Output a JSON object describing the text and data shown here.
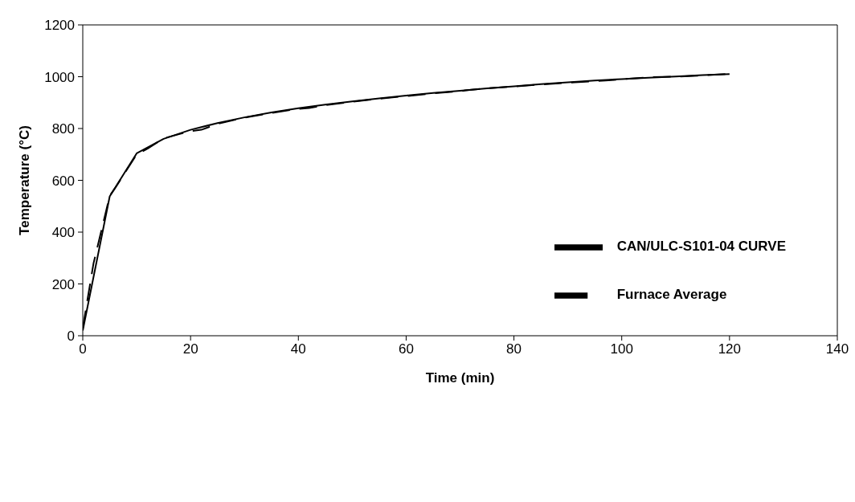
{
  "chart_data": {
    "type": "line",
    "xlabel": "Time (min)",
    "ylabel": "Temperature (°C)",
    "xlim": [
      0,
      140
    ],
    "xticks": [
      0,
      20,
      40,
      60,
      80,
      100,
      120,
      140
    ],
    "ylim": [
      0,
      1200
    ],
    "yticks": [
      0,
      200,
      400,
      600,
      800,
      1000,
      1200
    ],
    "legend": "right",
    "marker": "none",
    "series": [
      {
        "name": "CAN/ULC-S101-04 CURVE",
        "color": "#000000",
        "line_style": "solid",
        "x": [
          0,
          5,
          10,
          15,
          20,
          25,
          30,
          35,
          40,
          45,
          50,
          55,
          60,
          65,
          70,
          75,
          80,
          85,
          90,
          95,
          100,
          105,
          110,
          115,
          120
        ],
        "values": [
          20,
          538,
          704,
          760,
          795,
          821,
          843,
          862,
          878,
          892,
          905,
          916,
          927,
          937,
          946,
          955,
          963,
          971,
          978,
          985,
          991,
          996,
          1001,
          1006,
          1010
        ]
      },
      {
        "name": "Furnace Average",
        "color": "#000000",
        "line_style": "dashed",
        "x": [
          0,
          2,
          5,
          6,
          10,
          12,
          15,
          20,
          22,
          25,
          30,
          35,
          40,
          42,
          45,
          50,
          55,
          60,
          65,
          70,
          71,
          75,
          80,
          85,
          90,
          95,
          97,
          100,
          105,
          110,
          115,
          120
        ],
        "values": [
          30,
          280,
          540,
          570,
          700,
          722,
          762,
          790,
          795,
          818,
          842,
          860,
          876,
          879,
          890,
          903,
          915,
          925,
          936,
          944,
          947,
          955,
          962,
          970,
          977,
          983,
          985,
          990,
          998,
          1000,
          1005,
          1011
        ]
      }
    ]
  }
}
